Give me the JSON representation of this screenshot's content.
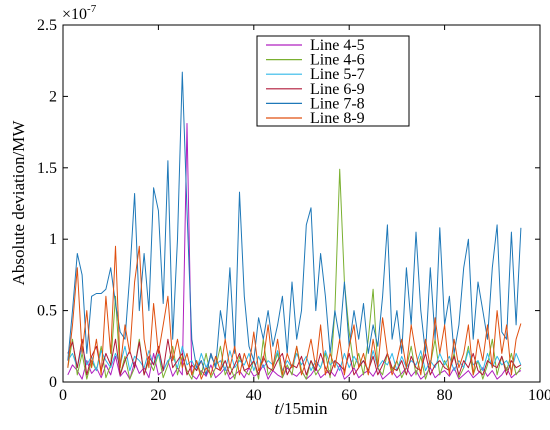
{
  "chart_data": {
    "type": "line",
    "title": "",
    "xlabel_italic": "t",
    "xlabel_rest": "/15min",
    "ylabel": "Absolute deviation/MW",
    "y_multiplier_label": "×10",
    "y_multiplier_exp": "-7",
    "xlim": [
      0,
      100
    ],
    "ylim": [
      0,
      2.5
    ],
    "x_ticks": [
      0,
      20,
      40,
      60,
      80,
      100
    ],
    "x_tick_labels": [
      "0",
      "20",
      "40",
      "60",
      "80",
      "100"
    ],
    "y_ticks": [
      0,
      0.5,
      1,
      1.5,
      2,
      2.5
    ],
    "y_tick_labels": [
      "0",
      "0.5",
      "1",
      "1.5",
      "2",
      "2.5"
    ],
    "legend_position": "top-center",
    "series": [
      {
        "name": "Line 4-5",
        "color": "#b020c0",
        "x": [
          1,
          2,
          3,
          4,
          5,
          6,
          7,
          8,
          9,
          10,
          11,
          12,
          13,
          14,
          15,
          16,
          17,
          18,
          19,
          20,
          21,
          22,
          23,
          24,
          25,
          26,
          27,
          28,
          29,
          30,
          31,
          32,
          33,
          34,
          35,
          36,
          37,
          38,
          39,
          40,
          41,
          42,
          43,
          44,
          45,
          46,
          47,
          48,
          49,
          50,
          51,
          52,
          53,
          54,
          55,
          56,
          57,
          58,
          59,
          60,
          61,
          62,
          63,
          64,
          65,
          66,
          67,
          68,
          69,
          70,
          71,
          72,
          73,
          74,
          75,
          76,
          77,
          78,
          79,
          80,
          81,
          82,
          83,
          84,
          85,
          86,
          87,
          88,
          89,
          90,
          91,
          92,
          93,
          94,
          95,
          96
        ],
        "values": [
          0.05,
          0.12,
          0.08,
          0.02,
          0.15,
          0.06,
          0.1,
          0.03,
          0.12,
          0.05,
          0.18,
          0.04,
          0.08,
          0.02,
          0.14,
          0.06,
          0.1,
          0.03,
          0.2,
          0.05,
          0.08,
          0.15,
          0.04,
          0.1,
          0.05,
          1.81,
          0.05,
          0.02,
          0.08,
          0.04,
          0.12,
          0.03,
          0.06,
          0.1,
          0.02,
          0.05,
          0.08,
          0.03,
          0.1,
          0.04,
          0.06,
          0.12,
          0.02,
          0.08,
          0.05,
          0.03,
          0.1,
          0.06,
          0.04,
          0.08,
          0.02,
          0.05,
          0.1,
          0.03,
          0.06,
          0.08,
          0.04,
          0.12,
          0.02,
          0.05,
          0.1,
          0.03,
          0.06,
          0.08,
          0.04,
          0.1,
          0.02,
          0.05,
          0.08,
          0.03,
          0.06,
          0.1,
          0.04,
          0.08,
          0.02,
          0.05,
          0.1,
          0.03,
          0.06,
          0.08,
          0.04,
          0.1,
          0.02,
          0.05,
          0.08,
          0.03,
          0.06,
          0.1,
          0.04,
          0.08,
          0.02,
          0.05,
          0.1,
          0.03,
          0.06,
          0.08
        ]
      },
      {
        "name": "Line 4-6",
        "color": "#7ab030",
        "x": [
          1,
          2,
          3,
          4,
          5,
          6,
          7,
          8,
          9,
          10,
          11,
          12,
          13,
          14,
          15,
          16,
          17,
          18,
          19,
          20,
          21,
          22,
          23,
          24,
          25,
          26,
          27,
          28,
          29,
          30,
          31,
          32,
          33,
          34,
          35,
          36,
          37,
          38,
          39,
          40,
          41,
          42,
          43,
          44,
          45,
          46,
          47,
          48,
          49,
          50,
          51,
          52,
          53,
          54,
          55,
          56,
          57,
          58,
          59,
          60,
          61,
          62,
          63,
          64,
          65,
          66,
          67,
          68,
          69,
          70,
          71,
          72,
          73,
          74,
          75,
          76,
          77,
          78,
          79,
          80,
          81,
          82,
          83,
          84,
          85,
          86,
          87,
          88,
          89,
          90,
          91,
          92,
          93,
          94,
          95,
          96
        ],
        "values": [
          0.1,
          0.3,
          0.05,
          0.2,
          0.02,
          0.15,
          0.08,
          0.25,
          0.03,
          0.12,
          0.6,
          0.05,
          0.18,
          0.02,
          0.1,
          0.3,
          0.05,
          0.15,
          0.08,
          0.2,
          0.03,
          0.12,
          0.25,
          0.05,
          0.18,
          0.08,
          0.02,
          0.15,
          0.05,
          0.2,
          0.03,
          0.1,
          0.25,
          0.05,
          0.12,
          0.02,
          0.18,
          0.08,
          0.05,
          0.15,
          0.02,
          0.3,
          0.05,
          0.1,
          0.2,
          0.03,
          0.12,
          0.05,
          0.25,
          0.08,
          0.02,
          0.15,
          0.05,
          0.1,
          0.2,
          0.03,
          0.5,
          1.49,
          0.7,
          0.35,
          0.1,
          0.2,
          0.05,
          0.3,
          0.65,
          0.1,
          0.05,
          0.2,
          0.08,
          0.15,
          0.03,
          0.1,
          0.25,
          0.05,
          0.18,
          0.02,
          0.12,
          0.3,
          0.05,
          0.15,
          0.08,
          0.2,
          0.03,
          0.1,
          0.25,
          0.05,
          0.15,
          0.02,
          0.12,
          0.3,
          0.05,
          0.18,
          0.08,
          0.2,
          0.05,
          0.1
        ]
      },
      {
        "name": "Line 5-7",
        "color": "#30b8e8",
        "x": [
          1,
          2,
          3,
          4,
          5,
          6,
          7,
          8,
          9,
          10,
          11,
          12,
          13,
          14,
          15,
          16,
          17,
          18,
          19,
          20,
          21,
          22,
          23,
          24,
          25,
          26,
          27,
          28,
          29,
          30,
          31,
          32,
          33,
          34,
          35,
          36,
          37,
          38,
          39,
          40,
          41,
          42,
          43,
          44,
          45,
          46,
          47,
          48,
          49,
          50,
          51,
          52,
          53,
          54,
          55,
          56,
          57,
          58,
          59,
          60,
          61,
          62,
          63,
          64,
          65,
          66,
          67,
          68,
          69,
          70,
          71,
          72,
          73,
          74,
          75,
          76,
          77,
          78,
          79,
          80,
          81,
          82,
          83,
          84,
          85,
          86,
          87,
          88,
          89,
          90,
          91,
          92,
          93,
          94,
          95,
          96
        ],
        "values": [
          0.15,
          0.2,
          0.1,
          0.25,
          0.12,
          0.18,
          0.08,
          0.22,
          0.15,
          0.1,
          0.2,
          0.12,
          0.25,
          0.08,
          0.18,
          0.15,
          0.1,
          0.22,
          0.12,
          0.2,
          0.08,
          0.15,
          0.18,
          0.1,
          0.25,
          0.12,
          0.15,
          0.08,
          0.2,
          0.1,
          0.18,
          0.12,
          0.15,
          0.08,
          0.22,
          0.1,
          0.15,
          0.12,
          0.2,
          0.08,
          0.18,
          0.1,
          0.15,
          0.12,
          0.22,
          0.08,
          0.15,
          0.1,
          0.2,
          0.12,
          0.18,
          0.08,
          0.15,
          0.1,
          0.22,
          0.12,
          0.15,
          0.08,
          0.2,
          0.1,
          0.18,
          0.12,
          0.15,
          0.08,
          0.22,
          0.1,
          0.15,
          0.12,
          0.2,
          0.08,
          0.18,
          0.1,
          0.15,
          0.12,
          0.22,
          0.08,
          0.15,
          0.1,
          0.2,
          0.12,
          0.18,
          0.08,
          0.15,
          0.1,
          0.22,
          0.12,
          0.15,
          0.08,
          0.2,
          0.1,
          0.18,
          0.12,
          0.15,
          0.08,
          0.2,
          0.12
        ]
      },
      {
        "name": "Line 6-9",
        "color": "#b01838",
        "x": [
          1,
          2,
          3,
          4,
          5,
          6,
          7,
          8,
          9,
          10,
          11,
          12,
          13,
          14,
          15,
          16,
          17,
          18,
          19,
          20,
          21,
          22,
          23,
          24,
          25,
          26,
          27,
          28,
          29,
          30,
          31,
          32,
          33,
          34,
          35,
          36,
          37,
          38,
          39,
          40,
          41,
          42,
          43,
          44,
          45,
          46,
          47,
          48,
          49,
          50,
          51,
          52,
          53,
          54,
          55,
          56,
          57,
          58,
          59,
          60,
          61,
          62,
          63,
          64,
          65,
          66,
          67,
          68,
          69,
          70,
          71,
          72,
          73,
          74,
          75,
          76,
          77,
          78,
          79,
          80,
          81,
          82,
          83,
          84,
          85,
          86,
          87,
          88,
          89,
          90,
          91,
          92,
          93,
          94,
          95,
          96
        ],
        "values": [
          0.2,
          0.28,
          0.1,
          0.3,
          0.05,
          0.18,
          0.25,
          0.08,
          0.2,
          0.12,
          0.3,
          0.05,
          0.15,
          0.22,
          0.1,
          0.28,
          0.05,
          0.18,
          0.12,
          0.25,
          0.08,
          0.3,
          0.1,
          0.15,
          0.2,
          0.05,
          0.12,
          0.08,
          0.15,
          0.05,
          0.2,
          0.1,
          0.08,
          0.15,
          0.05,
          0.12,
          0.2,
          0.08,
          0.1,
          0.15,
          0.05,
          0.18,
          0.1,
          0.08,
          0.15,
          0.2,
          0.05,
          0.12,
          0.1,
          0.18,
          0.05,
          0.15,
          0.08,
          0.2,
          0.1,
          0.05,
          0.15,
          0.12,
          0.08,
          0.2,
          0.05,
          0.1,
          0.15,
          0.08,
          0.18,
          0.05,
          0.12,
          0.2,
          0.1,
          0.08,
          0.15,
          0.05,
          0.18,
          0.1,
          0.08,
          0.2,
          0.05,
          0.12,
          0.15,
          0.1,
          0.08,
          0.18,
          0.05,
          0.15,
          0.1,
          0.2,
          0.08,
          0.05,
          0.15,
          0.12,
          0.1,
          0.18,
          0.05,
          0.15,
          0.1,
          0.12
        ]
      },
      {
        "name": "Line 7-8",
        "color": "#1e78b8",
        "x": [
          1,
          2,
          3,
          4,
          5,
          6,
          7,
          8,
          9,
          10,
          11,
          12,
          13,
          14,
          15,
          16,
          17,
          18,
          19,
          20,
          21,
          22,
          23,
          24,
          25,
          26,
          27,
          28,
          29,
          30,
          31,
          32,
          33,
          34,
          35,
          36,
          37,
          38,
          39,
          40,
          41,
          42,
          43,
          44,
          45,
          46,
          47,
          48,
          49,
          50,
          51,
          52,
          53,
          54,
          55,
          56,
          57,
          58,
          59,
          60,
          61,
          62,
          63,
          64,
          65,
          66,
          67,
          68,
          69,
          70,
          71,
          72,
          73,
          74,
          75,
          76,
          77,
          78,
          79,
          80,
          81,
          82,
          83,
          84,
          85,
          86,
          87,
          88,
          89,
          90,
          91,
          92,
          93,
          94,
          95,
          96
        ],
        "values": [
          0.15,
          0.5,
          0.9,
          0.75,
          0.2,
          0.6,
          0.62,
          0.62,
          0.65,
          0.8,
          0.55,
          0.35,
          0.3,
          0.75,
          1.32,
          0.5,
          0.9,
          0.5,
          1.36,
          1.2,
          0.55,
          1.55,
          0.3,
          1.0,
          2.17,
          1.2,
          0.3,
          0.1,
          0.15,
          0.05,
          0.2,
          0.1,
          0.5,
          0.3,
          0.8,
          0.2,
          1.33,
          0.6,
          0.25,
          0.15,
          0.45,
          0.3,
          0.5,
          0.25,
          0.4,
          0.6,
          0.2,
          0.7,
          0.3,
          0.5,
          1.1,
          1.22,
          0.5,
          0.9,
          0.6,
          0.2,
          0.5,
          0.3,
          0.7,
          0.25,
          0.5,
          0.3,
          0.55,
          0.2,
          0.4,
          0.25,
          0.6,
          1.1,
          0.3,
          0.5,
          0.2,
          0.8,
          0.4,
          1.05,
          0.5,
          0.2,
          0.8,
          0.3,
          1.08,
          0.4,
          0.6,
          0.2,
          0.4,
          0.8,
          1.0,
          0.3,
          0.7,
          0.5,
          0.3,
          0.8,
          1.1,
          0.35,
          0.3,
          1.05,
          0.4,
          1.08
        ]
      },
      {
        "name": "Line 8-9",
        "color": "#e05010",
        "x": [
          1,
          2,
          3,
          4,
          5,
          6,
          7,
          8,
          9,
          10,
          11,
          12,
          13,
          14,
          15,
          16,
          17,
          18,
          19,
          20,
          21,
          22,
          23,
          24,
          25,
          26,
          27,
          28,
          29,
          30,
          31,
          32,
          33,
          34,
          35,
          36,
          37,
          38,
          39,
          40,
          41,
          42,
          43,
          44,
          45,
          46,
          47,
          48,
          49,
          50,
          51,
          52,
          53,
          54,
          55,
          56,
          57,
          58,
          59,
          60,
          61,
          62,
          63,
          64,
          65,
          66,
          67,
          68,
          69,
          70,
          71,
          72,
          73,
          74,
          75,
          76,
          77,
          78,
          79,
          80,
          81,
          82,
          83,
          84,
          85,
          86,
          87,
          88,
          89,
          90,
          91,
          92,
          93,
          94,
          95,
          96
        ],
        "values": [
          0.1,
          0.4,
          0.8,
          0.2,
          0.5,
          0.1,
          0.3,
          0.05,
          0.6,
          0.2,
          0.95,
          0.1,
          0.4,
          0.2,
          0.7,
          0.95,
          0.3,
          0.1,
          0.55,
          0.2,
          0.4,
          0.6,
          0.15,
          0.3,
          0.1,
          0.2,
          0.05,
          0.15,
          0.02,
          0.1,
          0.05,
          0.18,
          0.08,
          0.3,
          0.1,
          0.25,
          0.05,
          0.2,
          0.1,
          0.35,
          0.08,
          0.15,
          0.4,
          0.1,
          0.3,
          0.05,
          0.2,
          0.1,
          0.25,
          0.05,
          0.15,
          0.3,
          0.1,
          0.4,
          0.05,
          0.2,
          0.1,
          0.3,
          0.05,
          0.25,
          0.4,
          0.1,
          0.2,
          0.05,
          0.3,
          0.1,
          0.45,
          0.2,
          0.05,
          0.15,
          0.3,
          0.1,
          0.4,
          0.2,
          0.05,
          0.3,
          0.1,
          0.45,
          0.2,
          0.4,
          0.05,
          0.3,
          0.1,
          0.2,
          0.4,
          0.05,
          0.3,
          0.15,
          0.4,
          0.1,
          0.5,
          0.2,
          0.4,
          0.05,
          0.3,
          0.41
        ]
      }
    ]
  }
}
